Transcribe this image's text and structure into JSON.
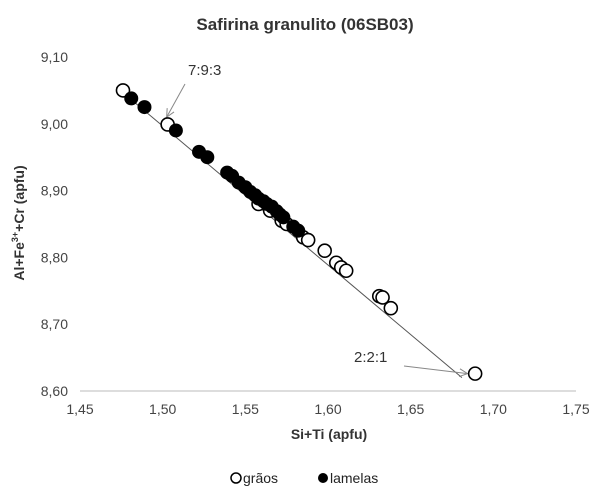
{
  "chart_data": {
    "type": "scatter",
    "title": "Safirina granulito (06SB03)",
    "xlabel": "Si+Ti (apfu)",
    "ylabel_parts": [
      "Al+Fe",
      "3+",
      "+Cr (apfu)"
    ],
    "xlim": [
      1.45,
      1.75
    ],
    "ylim": [
      8.6,
      9.1
    ],
    "xticks": [
      1.45,
      1.5,
      1.55,
      1.6,
      1.65,
      1.7,
      1.75
    ],
    "yticks": [
      8.6,
      8.7,
      8.8,
      8.9,
      9.0,
      9.1
    ],
    "xtick_labels": [
      "1,45",
      "1,50",
      "1,55",
      "1,60",
      "1,65",
      "1,70",
      "1,75"
    ],
    "ytick_labels": [
      "8,60",
      "8,70",
      "8,80",
      "8,90",
      "9,00",
      "9,10"
    ],
    "grid": false,
    "legend_position": "bottom",
    "series": [
      {
        "name": "grãos",
        "marker": "open-circle",
        "color": "#000000",
        "points": [
          {
            "x": 1.476,
            "y": 9.05
          },
          {
            "x": 1.503,
            "y": 8.999
          },
          {
            "x": 1.558,
            "y": 8.88
          },
          {
            "x": 1.565,
            "y": 8.87
          },
          {
            "x": 1.572,
            "y": 8.855
          },
          {
            "x": 1.575,
            "y": 8.85
          },
          {
            "x": 1.585,
            "y": 8.83
          },
          {
            "x": 1.588,
            "y": 8.826
          },
          {
            "x": 1.598,
            "y": 8.81
          },
          {
            "x": 1.605,
            "y": 8.792
          },
          {
            "x": 1.608,
            "y": 8.785
          },
          {
            "x": 1.611,
            "y": 8.78
          },
          {
            "x": 1.631,
            "y": 8.742
          },
          {
            "x": 1.633,
            "y": 8.74
          },
          {
            "x": 1.638,
            "y": 8.724
          },
          {
            "x": 1.689,
            "y": 8.626
          }
        ]
      },
      {
        "name": "lamelas",
        "marker": "filled-circle",
        "color": "#000000",
        "points": [
          {
            "x": 1.481,
            "y": 9.038
          },
          {
            "x": 1.489,
            "y": 9.025
          },
          {
            "x": 1.508,
            "y": 8.99
          },
          {
            "x": 1.522,
            "y": 8.958
          },
          {
            "x": 1.527,
            "y": 8.95
          },
          {
            "x": 1.539,
            "y": 8.927
          },
          {
            "x": 1.542,
            "y": 8.922
          },
          {
            "x": 1.546,
            "y": 8.912
          },
          {
            "x": 1.55,
            "y": 8.905
          },
          {
            "x": 1.553,
            "y": 8.898
          },
          {
            "x": 1.556,
            "y": 8.893
          },
          {
            "x": 1.558,
            "y": 8.888
          },
          {
            "x": 1.561,
            "y": 8.884
          },
          {
            "x": 1.563,
            "y": 8.88
          },
          {
            "x": 1.566,
            "y": 8.876
          },
          {
            "x": 1.569,
            "y": 8.869
          },
          {
            "x": 1.571,
            "y": 8.864
          },
          {
            "x": 1.573,
            "y": 8.86
          },
          {
            "x": 1.579,
            "y": 8.846
          },
          {
            "x": 1.582,
            "y": 8.84
          }
        ]
      }
    ],
    "reference_line": {
      "x": [
        1.472,
        1.681
      ],
      "y": [
        9.055,
        8.62
      ]
    },
    "annotations": [
      {
        "text": "7:9:3",
        "arrow_to": {
          "x": 1.5,
          "y": 9.004
        }
      },
      {
        "text": "2:2:1",
        "arrow_to": {
          "x": 1.682,
          "y": 8.62
        }
      }
    ]
  }
}
